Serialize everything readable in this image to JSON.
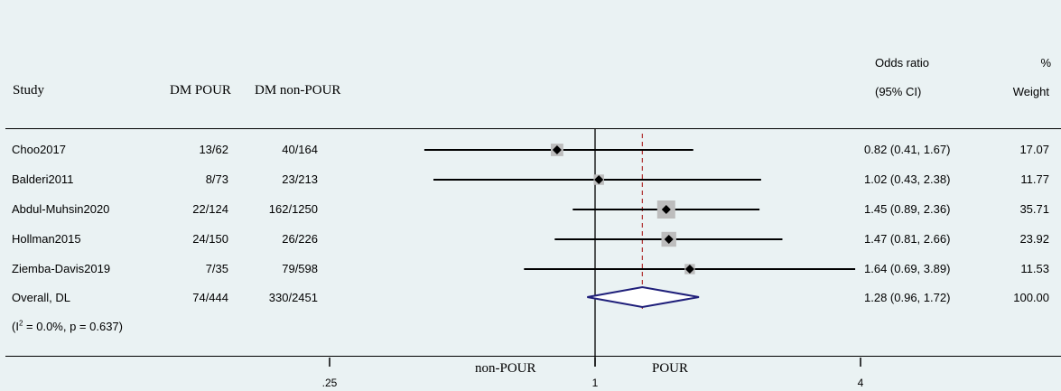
{
  "headers": {
    "study": "Study",
    "group1": "DM POUR",
    "group2": "DM non-POUR",
    "effect_line1": "Odds ratio",
    "effect_line2": "(95% CI)",
    "weight_line1": "%",
    "weight_line2": "Weight"
  },
  "rows": [
    {
      "study": "Choo2017",
      "group1": "13/62",
      "group2": "40/164",
      "ci_text": "0.82 (0.41, 1.67)",
      "weight": "17.07"
    },
    {
      "study": "Balderi2011",
      "group1": "8/73",
      "group2": "23/213",
      "ci_text": "1.02 (0.43, 2.38)",
      "weight": "11.77"
    },
    {
      "study": "Abdul-Muhsin2020",
      "group1": "22/124",
      "group2": "162/1250",
      "ci_text": "1.45 (0.89, 2.36)",
      "weight": "35.71"
    },
    {
      "study": "Hollman2015",
      "group1": "24/150",
      "group2": "26/226",
      "ci_text": "1.47 (0.81, 2.66)",
      "weight": "23.92"
    },
    {
      "study": "Ziemba-Davis2019",
      "group1": "7/35",
      "group2": "79/598",
      "ci_text": "1.64 (0.69, 3.89)",
      "weight": "11.53"
    }
  ],
  "overall": {
    "label": "Overall, DL",
    "group1": "74/444",
    "group2": "330/2451",
    "ci_text": "1.28 (0.96, 1.72)",
    "weight": "100.00"
  },
  "heterogeneity": {
    "prefix": "(I",
    "sup": "2",
    "suffix": " = 0.0%, p = 0.637)"
  },
  "axis": {
    "left_label": "non-POUR",
    "right_label": "POUR"
  },
  "colors": {
    "background": "#eaf2f3",
    "marker_box": "#bdbdbd",
    "diamond": "#1f1f7a",
    "dashed": "#b03030",
    "line": "#000000"
  },
  "chart_data": {
    "type": "forest",
    "scale": "log",
    "xticks": [
      {
        "value": 0.25,
        "label": ".25"
      },
      {
        "value": 1,
        "label": "1"
      },
      {
        "value": 4,
        "label": "4"
      }
    ],
    "xlim": [
      0.0625,
      8.5
    ],
    "null_line": 1,
    "overall_line": 1.28,
    "studies": [
      {
        "name": "Choo2017",
        "or": 0.82,
        "lo": 0.41,
        "hi": 1.67,
        "weight": 17.07
      },
      {
        "name": "Balderi2011",
        "or": 1.02,
        "lo": 0.43,
        "hi": 2.38,
        "weight": 11.77
      },
      {
        "name": "Abdul-Muhsin2020",
        "or": 1.45,
        "lo": 0.89,
        "hi": 2.36,
        "weight": 35.71
      },
      {
        "name": "Hollman2015",
        "or": 1.47,
        "lo": 0.81,
        "hi": 2.66,
        "weight": 23.92
      },
      {
        "name": "Ziemba-Davis2019",
        "or": 1.64,
        "lo": 0.69,
        "hi": 3.89,
        "weight": 11.53
      }
    ],
    "overall": {
      "name": "Overall, DL",
      "or": 1.28,
      "lo": 0.96,
      "hi": 1.72,
      "weight": 100.0
    }
  }
}
